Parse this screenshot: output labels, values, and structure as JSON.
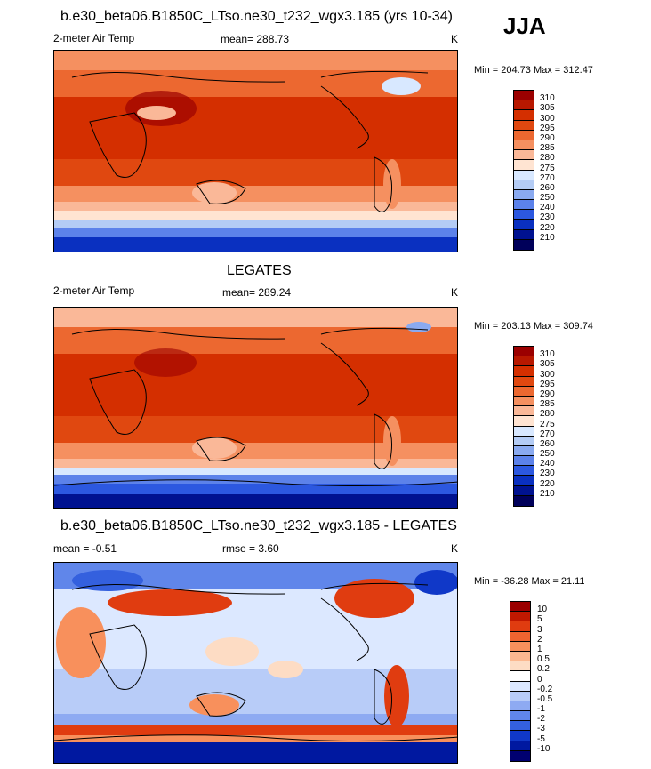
{
  "season": "JJA",
  "panels": [
    {
      "title": "b.e30_beta06.B1850C_LTso.ne30_t232_wgx3.185 (yrs 10-34)",
      "variable": "2-meter Air Temp",
      "stat": "mean= 288.73",
      "units": "K",
      "minmax": "Min = 204.73 Max = 312.47",
      "colorbar": {
        "labels": [
          "310",
          "305",
          "300",
          "295",
          "290",
          "285",
          "280",
          "275",
          "270",
          "260",
          "250",
          "240",
          "230",
          "220",
          "210"
        ],
        "colors": [
          "#9b0000",
          "#b81800",
          "#d42f00",
          "#e04810",
          "#ec6830",
          "#f59060",
          "#fab898",
          "#ffe4d2",
          "#d8e8ff",
          "#b4ccf5",
          "#8aaaf0",
          "#5c82ea",
          "#2c58e0",
          "#0a30c0",
          "#001290",
          "#00005a"
        ]
      }
    },
    {
      "title": "LEGATES",
      "variable": "2-meter Air Temp",
      "stat": "mean= 289.24",
      "units": "K",
      "minmax": "Min = 203.13 Max = 309.74",
      "colorbar": {
        "labels": [
          "310",
          "305",
          "300",
          "295",
          "290",
          "285",
          "280",
          "275",
          "270",
          "260",
          "250",
          "240",
          "230",
          "220",
          "210"
        ],
        "colors": [
          "#9b0000",
          "#b81800",
          "#d42f00",
          "#e04810",
          "#ec6830",
          "#f59060",
          "#fab898",
          "#ffe4d2",
          "#d8e8ff",
          "#b4ccf5",
          "#8aaaf0",
          "#5c82ea",
          "#2c58e0",
          "#0a30c0",
          "#001290",
          "#00005a"
        ]
      }
    },
    {
      "title": "b.e30_beta06.B1850C_LTso.ne30_t232_wgx3.185 - LEGATES",
      "stat_left": "mean = -0.51",
      "stat_mid": "rmse = 3.60",
      "units": "K",
      "minmax": "Min = -36.28 Max = 21.11",
      "colorbar": {
        "labels": [
          "10",
          "5",
          "3",
          "2",
          "1",
          "0.5",
          "0.2",
          "0",
          "-0.2",
          "-0.5",
          "-1",
          "-2",
          "-3",
          "-5",
          "-10"
        ],
        "colors": [
          "#9b0000",
          "#c01800",
          "#e03c10",
          "#ef6430",
          "#f8905c",
          "#fbb890",
          "#fddcc4",
          "#ffffff",
          "#dce8ff",
          "#b8ccf8",
          "#8eaaf2",
          "#6086ea",
          "#3460de",
          "#1038c8",
          "#0018a0",
          "#000070"
        ]
      }
    }
  ]
}
